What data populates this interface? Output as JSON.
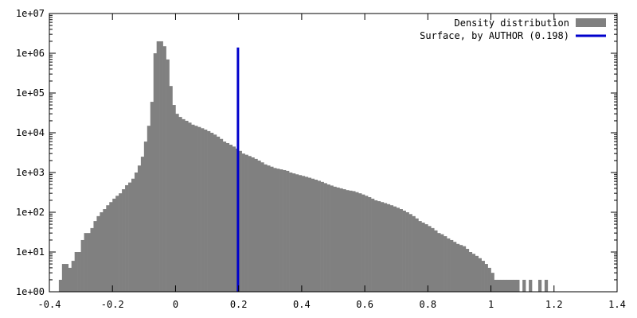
{
  "chart_data": {
    "type": "bar",
    "scale": {
      "x": "linear",
      "y": "log"
    },
    "xlim": [
      -0.4,
      1.4
    ],
    "ylim": [
      1,
      10000000
    ],
    "x_ticks": [
      "-0.4",
      "-0.2",
      "0",
      "0.2",
      "0.4",
      "0.6",
      "0.8",
      "1",
      "1.2",
      "1.4"
    ],
    "x_tick_values": [
      -0.4,
      -0.2,
      0,
      0.2,
      0.4,
      0.6,
      0.8,
      1.0,
      1.2,
      1.4
    ],
    "y_ticks": [
      "1e+00",
      "1e+01",
      "1e+02",
      "1e+03",
      "1e+04",
      "1e+05",
      "1e+06",
      "1e+07"
    ],
    "y_tick_values": [
      1,
      10,
      100,
      1000,
      10000,
      100000,
      1000000,
      10000000
    ],
    "legend_position": "top-right",
    "series": [
      {
        "name": "Density distribution",
        "kind": "histogram",
        "color": "#808080",
        "bin_width": 0.01,
        "bin_starts": [
          -0.37,
          -0.36,
          -0.35,
          -0.34,
          -0.33,
          -0.32,
          -0.31,
          -0.3,
          -0.29,
          -0.28,
          -0.27,
          -0.26,
          -0.25,
          -0.24,
          -0.23,
          -0.22,
          -0.21,
          -0.2,
          -0.19,
          -0.18,
          -0.17,
          -0.16,
          -0.15,
          -0.14,
          -0.13,
          -0.12,
          -0.11,
          -0.1,
          -0.09,
          -0.08,
          -0.07,
          -0.06,
          -0.05,
          -0.04,
          -0.03,
          -0.02,
          -0.01,
          0.0,
          0.01,
          0.02,
          0.03,
          0.04,
          0.05,
          0.06,
          0.07,
          0.08,
          0.09,
          0.1,
          0.11,
          0.12,
          0.13,
          0.14,
          0.15,
          0.16,
          0.17,
          0.18,
          0.19,
          0.2,
          0.21,
          0.22,
          0.23,
          0.24,
          0.25,
          0.26,
          0.27,
          0.28,
          0.29,
          0.3,
          0.31,
          0.32,
          0.33,
          0.34,
          0.35,
          0.36,
          0.37,
          0.38,
          0.39,
          0.4,
          0.41,
          0.42,
          0.43,
          0.44,
          0.45,
          0.46,
          0.47,
          0.48,
          0.49,
          0.5,
          0.51,
          0.52,
          0.53,
          0.54,
          0.55,
          0.56,
          0.57,
          0.58,
          0.59,
          0.6,
          0.61,
          0.62,
          0.63,
          0.64,
          0.65,
          0.66,
          0.67,
          0.68,
          0.69,
          0.7,
          0.71,
          0.72,
          0.73,
          0.74,
          0.75,
          0.76,
          0.77,
          0.78,
          0.79,
          0.8,
          0.81,
          0.82,
          0.83,
          0.84,
          0.85,
          0.86,
          0.87,
          0.88,
          0.89,
          0.9,
          0.91,
          0.92,
          0.93,
          0.94,
          0.95,
          0.96,
          0.97,
          0.98,
          0.99,
          1.0,
          1.01,
          1.02,
          1.03,
          1.04,
          1.05,
          1.06,
          1.07,
          1.08,
          1.09,
          1.1,
          1.11,
          1.12,
          1.13,
          1.14,
          1.15,
          1.16,
          1.17,
          1.18
        ],
        "counts": [
          2,
          5,
          5,
          4,
          6,
          10,
          10,
          20,
          30,
          30,
          40,
          60,
          80,
          100,
          120,
          150,
          180,
          220,
          260,
          300,
          380,
          480,
          560,
          700,
          1000,
          1500,
          2500,
          6000,
          15000,
          60000,
          1000000,
          2000000,
          2000000,
          1500000,
          700000,
          150000,
          50000,
          30000,
          25000,
          22000,
          20000,
          18000,
          16000,
          15000,
          14000,
          13000,
          12000,
          11000,
          10000,
          9000,
          8000,
          7000,
          6000,
          5500,
          5000,
          4500,
          4000,
          3500,
          3000,
          2800,
          2600,
          2400,
          2200,
          2000,
          1800,
          1600,
          1500,
          1400,
          1300,
          1250,
          1200,
          1150,
          1100,
          1000,
          950,
          900,
          860,
          820,
          780,
          740,
          700,
          660,
          620,
          580,
          540,
          500,
          470,
          440,
          420,
          400,
          380,
          360,
          350,
          340,
          320,
          300,
          280,
          260,
          240,
          220,
          200,
          190,
          180,
          170,
          160,
          150,
          140,
          130,
          120,
          110,
          100,
          90,
          80,
          70,
          60,
          55,
          50,
          45,
          40,
          35,
          30,
          28,
          25,
          22,
          20,
          18,
          16,
          15,
          14,
          12,
          10,
          9,
          8,
          7,
          6,
          5,
          4,
          3,
          2,
          2,
          2,
          2,
          2,
          2,
          2,
          2,
          0,
          2,
          0,
          2,
          0,
          0,
          2,
          0,
          2
        ]
      },
      {
        "name": "Surface, by AUTHOR (0.198)",
        "kind": "vertical_line",
        "color": "#0000cc",
        "x": 0.198,
        "y_range": [
          1,
          1400000
        ]
      }
    ]
  }
}
